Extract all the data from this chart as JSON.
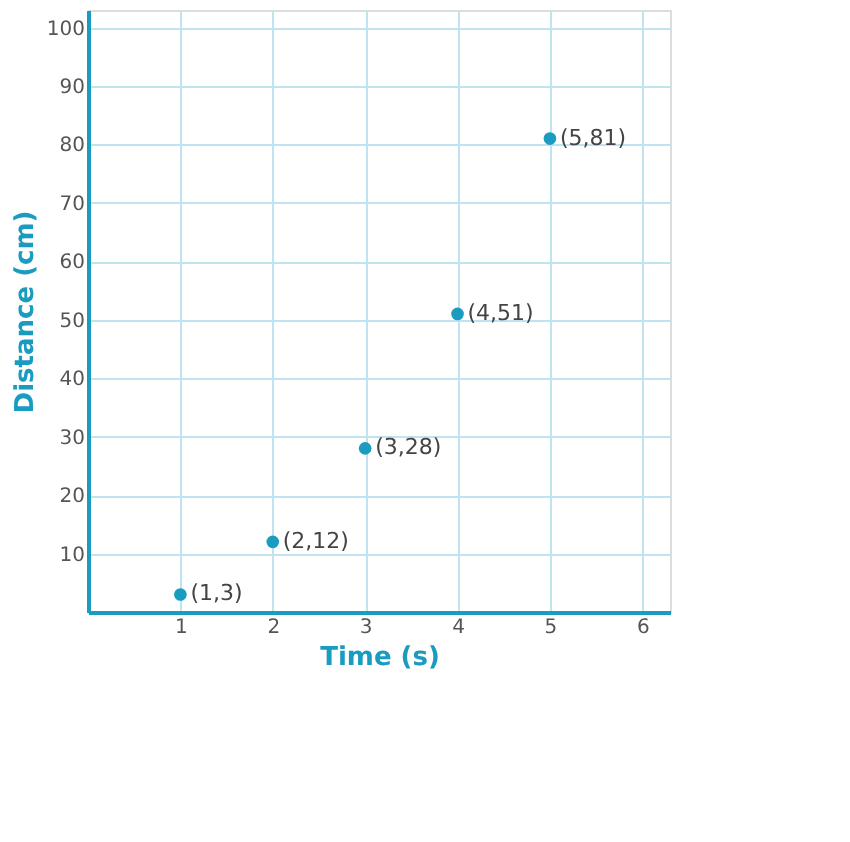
{
  "chart_data": {
    "type": "scatter",
    "xlabel": "Time (s)",
    "ylabel": "Distance (cm)",
    "x": [
      1,
      2,
      3,
      4,
      5
    ],
    "series": [
      {
        "color": "#1a9bc0",
        "values": [
          3,
          12,
          28,
          51,
          81
        ]
      }
    ],
    "annotations": [
      {
        "text": "(1,3)",
        "x": 1,
        "y": 3
      },
      {
        "text": "(2,12)",
        "x": 2,
        "y": 12
      },
      {
        "text": "(3,28)",
        "x": 3,
        "y": 28
      },
      {
        "text": "(4,51)",
        "x": 4,
        "y": 51
      },
      {
        "text": "(5,81)",
        "x": 5,
        "y": 81
      }
    ],
    "xlim": [
      0,
      6.3
    ],
    "ylim": [
      0,
      103
    ],
    "xticks": [
      1,
      2,
      3,
      4,
      5,
      6
    ],
    "yticks": [
      10,
      20,
      30,
      40,
      50,
      60,
      70,
      80,
      90,
      100
    ],
    "grid": true,
    "marker": "circle"
  }
}
